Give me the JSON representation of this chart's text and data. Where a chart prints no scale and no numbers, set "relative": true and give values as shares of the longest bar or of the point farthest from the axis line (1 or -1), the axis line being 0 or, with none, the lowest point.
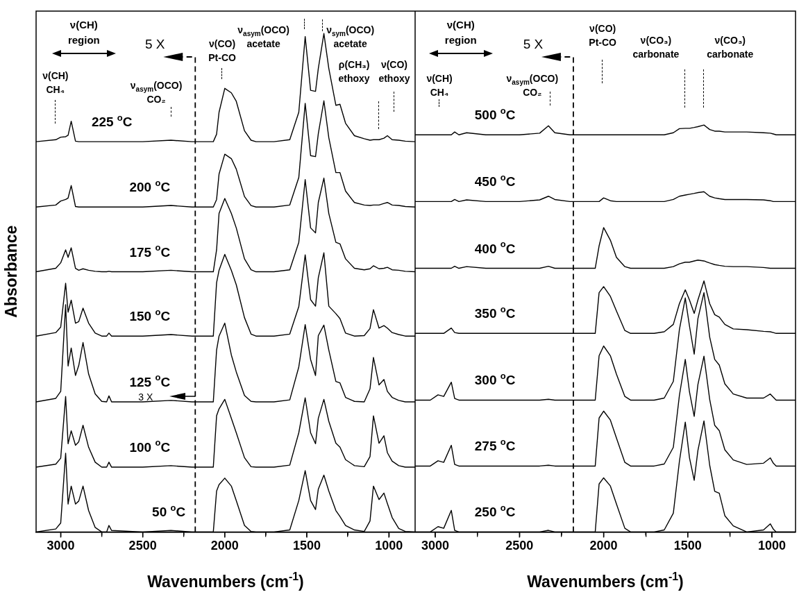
{
  "chart_data": [
    {
      "type": "line",
      "relative": true,
      "ylabel": "Absorbance",
      "xlabel": "Wavenumbers (cm$^{-1}$)",
      "xlim": [
        3150,
        840
      ],
      "xticks": [
        3000,
        {
          "value": 2750,
          "label": null
        },
        2500,
        {
          "value": 2250,
          "label": null
        },
        2000,
        {
          "value": 1750,
          "label": null
        },
        1500,
        {
          "value": 1250,
          "label": null
        },
        1000
      ],
      "tick_labels": "x",
      "grid": false,
      "legend": false,
      "marker": "none",
      "line_style": "solid",
      "x": [
        3150,
        3030,
        3000,
        2970,
        2955,
        2936,
        2910,
        2890,
        2864,
        2830,
        2790,
        2750,
        2720,
        2706,
        2690,
        2500,
        2328,
        2200,
        2070,
        2050,
        2035,
        2000,
        1960,
        1930,
        1880,
        1840,
        1810,
        1700,
        1604,
        1549,
        1510,
        1477,
        1447,
        1430,
        1396,
        1366,
        1323,
        1298,
        1264,
        1210,
        1150,
        1115,
        1094,
        1060,
        1030,
        1009,
        980,
        940,
        900,
        840
      ],
      "series": [
        {
          "name": "225 $^{o}$C",
          "color": "#000000",
          "values": [
            0.783,
            0.787,
            0.792,
            0.793,
            0.796,
            0.824,
            0.784,
            0.783,
            0.783,
            0.783,
            0.783,
            0.783,
            0.783,
            0.783,
            0.783,
            0.783,
            0.786,
            0.783,
            0.783,
            0.798,
            0.842,
            0.89,
            0.881,
            0.864,
            0.805,
            0.786,
            0.783,
            0.783,
            0.787,
            0.842,
            0.994,
            0.886,
            0.884,
            0.93,
            1,
            0.93,
            0.856,
            0.858,
            0.82,
            0.795,
            0.789,
            0.786,
            0.787,
            0.787,
            0.79,
            0.795,
            0.787,
            0.786,
            0.784,
            0.783
          ]
        },
        {
          "name": "200 $^{o}$C",
          "color": "#000000",
          "values": [
            0.652,
            0.656,
            0.664,
            0.667,
            0.67,
            0.695,
            0.653,
            0.652,
            0.652,
            0.652,
            0.652,
            0.652,
            0.652,
            0.652,
            0.652,
            0.652,
            0.655,
            0.652,
            0.652,
            0.667,
            0.718,
            0.758,
            0.749,
            0.728,
            0.673,
            0.655,
            0.652,
            0.652,
            0.656,
            0.711,
            0.86,
            0.755,
            0.753,
            0.799,
            0.865,
            0.791,
            0.721,
            0.721,
            0.684,
            0.661,
            0.656,
            0.655,
            0.656,
            0.656,
            0.659,
            0.661,
            0.656,
            0.655,
            0.653,
            0.652
          ]
        },
        {
          "name": "175 $^{o}$C",
          "color": "#000000",
          "values": [
            0.522,
            0.529,
            0.54,
            0.566,
            0.551,
            0.57,
            0.529,
            0.525,
            0.528,
            0.525,
            0.523,
            0.522,
            0.522,
            0.523,
            0.522,
            0.522,
            0.525,
            0.522,
            0.522,
            0.566,
            0.639,
            0.669,
            0.639,
            0.61,
            0.548,
            0.526,
            0.522,
            0.522,
            0.526,
            0.581,
            0.707,
            0.61,
            0.6,
            0.661,
            0.71,
            0.639,
            0.581,
            0.578,
            0.548,
            0.529,
            0.526,
            0.528,
            0.534,
            0.528,
            0.529,
            0.531,
            0.526,
            0.525,
            0.523,
            0.522
          ]
        },
        {
          "name": "150 $^{o}$C",
          "color": "#000000",
          "values": [
            0.393,
            0.4,
            0.411,
            0.499,
            0.441,
            0.465,
            0.419,
            0.422,
            0.449,
            0.419,
            0.399,
            0.393,
            0.393,
            0.399,
            0.393,
            0.393,
            0.396,
            0.393,
            0.393,
            0.5,
            0.525,
            0.557,
            0.525,
            0.496,
            0.43,
            0.397,
            0.393,
            0.393,
            0.397,
            0.452,
            0.556,
            0.466,
            0.453,
            0.51,
            0.56,
            0.453,
            0.438,
            0.428,
            0.399,
            0.393,
            0.394,
            0.408,
            0.446,
            0.409,
            0.414,
            0.409,
            0.4,
            0.396,
            0.393,
            0.393
          ]
        },
        {
          "name": "125 $^{o}$C",
          "color": "#000000",
          "values": [
            0.261,
            0.268,
            0.282,
            0.456,
            0.333,
            0.369,
            0.314,
            0.334,
            0.38,
            0.317,
            0.277,
            0.262,
            0.261,
            0.273,
            0.261,
            0.261,
            0.264,
            0.261,
            0.261,
            0.365,
            0.393,
            0.419,
            0.355,
            0.321,
            0.274,
            0.262,
            0.261,
            0.261,
            0.265,
            0.331,
            0.416,
            0.346,
            0.314,
            0.394,
            0.415,
            0.365,
            0.302,
            0.299,
            0.27,
            0.262,
            0.261,
            0.287,
            0.35,
            0.295,
            0.306,
            0.282,
            0.27,
            0.264,
            0.261,
            0.261
          ]
        },
        {
          "name": "100 $^{o}$C",
          "color": "#000000",
          "values": [
            0.13,
            0.136,
            0.148,
            0.272,
            0.177,
            0.203,
            0.174,
            0.181,
            0.214,
            0.17,
            0.14,
            0.13,
            0.13,
            0.14,
            0.13,
            0.13,
            0.133,
            0.13,
            0.13,
            0.233,
            0.247,
            0.266,
            0.228,
            0.199,
            0.149,
            0.131,
            0.13,
            0.13,
            0.134,
            0.199,
            0.269,
            0.199,
            0.177,
            0.228,
            0.266,
            0.222,
            0.178,
            0.17,
            0.145,
            0.133,
            0.131,
            0.151,
            0.233,
            0.178,
            0.193,
            0.159,
            0.142,
            0.133,
            0.13,
            0.13
          ]
        },
        {
          "name": "50 $^{o}$C",
          "color": "#000000",
          "values": [
            0,
            0.006,
            0.018,
            0.158,
            0.056,
            0.092,
            0.056,
            0.062,
            0.092,
            0.043,
            0.009,
            0,
            0,
            0.013,
            0.003,
            0,
            0.003,
            0,
            0,
            0.082,
            0.095,
            0.108,
            0.092,
            0.063,
            0.013,
            0.001,
            0,
            0,
            0.004,
            0.063,
            0.123,
            0.063,
            0.045,
            0.086,
            0.114,
            0.082,
            0.043,
            0.031,
            0.013,
            0.004,
            0.001,
            0.022,
            0.092,
            0.065,
            0.078,
            0.057,
            0.029,
            0.007,
            0.001,
            0
          ]
        }
      ],
      "ref_lines": [
        {
          "axis": "x",
          "value": 2180,
          "label": "5 X",
          "line_style": "dashed"
        }
      ],
      "annotations": [
        "ν(CH)\nregion",
        "ν(CH)\nCH₄",
        "ν$_{asym}$(OCO)\nCO₂",
        "ν(CO)\nPt-CO",
        "ν$_{asym}$(OCO)\nacetate",
        "ν$_{sym}$(OCO)\nacetate",
        "ρ(CH₃)\nethoxy",
        "ν(CO)\nethoxy",
        "3 X"
      ]
    },
    {
      "type": "line",
      "relative": true,
      "xlabel": "Wavenumbers (cm$^{-1}$)",
      "xlim": [
        3120,
        860
      ],
      "xticks": [
        3000,
        {
          "value": 2750,
          "label": null
        },
        2500,
        {
          "value": 2250,
          "label": null
        },
        2000,
        {
          "value": 1750,
          "label": null
        },
        1500,
        {
          "value": 1250,
          "label": null
        },
        1000
      ],
      "tick_labels": "x",
      "grid": false,
      "legend": false,
      "marker": "none",
      "line_style": "solid",
      "x": [
        3120,
        3030,
        2984,
        2950,
        2905,
        2885,
        2860,
        2814,
        2700,
        2500,
        2380,
        2328,
        2290,
        2200,
        2050,
        2027,
        2000,
        1960,
        1924,
        1874,
        1840,
        1700,
        1640,
        1586,
        1550,
        1515,
        1490,
        1462,
        1440,
        1404,
        1370,
        1340,
        1313,
        1280,
        1230,
        1150,
        1050,
        1010,
        992,
        975,
        900,
        860
      ],
      "series": [
        {
          "name": "500 $^{o}$C",
          "color": "#000000",
          "values": [
            0.976,
            0.976,
            0.976,
            0.976,
            0.976,
            0.983,
            0.976,
            0.981,
            0.976,
            0.976,
            0.98,
            0.998,
            0.981,
            0.976,
            0.976,
            0.976,
            0.976,
            0.976,
            0.976,
            0.976,
            0.976,
            0.976,
            0.976,
            0.981,
            0.991,
            0.992,
            0.992,
            0.994,
            0.996,
            1,
            0.989,
            0.985,
            0.985,
            0.983,
            0.983,
            0.983,
            0.981,
            0.98,
            0.978,
            0.976,
            0.976,
            0.976
          ]
        },
        {
          "name": "450 $^{o}$C",
          "color": "#000000",
          "values": [
            0.812,
            0.812,
            0.812,
            0.812,
            0.812,
            0.817,
            0.812,
            0.816,
            0.812,
            0.812,
            0.816,
            0.825,
            0.817,
            0.812,
            0.812,
            0.812,
            0.821,
            0.814,
            0.812,
            0.812,
            0.812,
            0.812,
            0.812,
            0.817,
            0.825,
            0.828,
            0.83,
            0.832,
            0.834,
            0.836,
            0.825,
            0.821,
            0.819,
            0.817,
            0.817,
            0.817,
            0.816,
            0.814,
            0.812,
            0.812,
            0.812,
            0.812
          ]
        },
        {
          "name": "400 $^{o}$C",
          "color": "#000000",
          "values": [
            0.648,
            0.648,
            0.648,
            0.648,
            0.648,
            0.653,
            0.648,
            0.652,
            0.648,
            0.648,
            0.648,
            0.653,
            0.648,
            0.648,
            0.648,
            0.703,
            0.748,
            0.717,
            0.675,
            0.652,
            0.648,
            0.648,
            0.648,
            0.652,
            0.659,
            0.663,
            0.663,
            0.666,
            0.668,
            0.666,
            0.661,
            0.657,
            0.655,
            0.653,
            0.652,
            0.652,
            0.65,
            0.648,
            0.648,
            0.648,
            0.648,
            0.648
          ]
        },
        {
          "name": "350 $^{o}$C",
          "color": "#000000",
          "values": [
            0.488,
            0.488,
            0.488,
            0.488,
            0.501,
            0.49,
            0.488,
            0.488,
            0.488,
            0.488,
            0.488,
            0.488,
            0.488,
            0.488,
            0.488,
            0.588,
            0.603,
            0.579,
            0.543,
            0.495,
            0.488,
            0.488,
            0.492,
            0.51,
            0.561,
            0.595,
            0.57,
            0.537,
            0.57,
            0.617,
            0.561,
            0.534,
            0.528,
            0.51,
            0.499,
            0.497,
            0.493,
            0.492,
            0.49,
            0.488,
            0.488,
            0.488
          ]
        },
        {
          "name": "300 $^{o}$C",
          "color": "#000000",
          "values": [
            0.324,
            0.324,
            0.337,
            0.333,
            0.368,
            0.328,
            0.324,
            0.324,
            0.324,
            0.324,
            0.324,
            0.326,
            0.324,
            0.324,
            0.324,
            0.433,
            0.457,
            0.433,
            0.388,
            0.333,
            0.324,
            0.324,
            0.329,
            0.37,
            0.497,
            0.575,
            0.506,
            0.437,
            0.524,
            0.588,
            0.479,
            0.424,
            0.41,
            0.364,
            0.339,
            0.329,
            0.329,
            0.339,
            0.331,
            0.324,
            0.324,
            0.324
          ]
        },
        {
          "name": "275 $^{o}$C",
          "color": "#000000",
          "values": [
            0.162,
            0.162,
            0.175,
            0.171,
            0.213,
            0.166,
            0.162,
            0.162,
            0.162,
            0.162,
            0.162,
            0.164,
            0.162,
            0.162,
            0.162,
            0.28,
            0.297,
            0.275,
            0.231,
            0.171,
            0.162,
            0.162,
            0.167,
            0.208,
            0.335,
            0.424,
            0.344,
            0.284,
            0.362,
            0.432,
            0.326,
            0.262,
            0.249,
            0.202,
            0.177,
            0.166,
            0.169,
            0.182,
            0.169,
            0.162,
            0.162,
            0.162
          ]
        },
        {
          "name": "250 $^{o}$C",
          "color": "#000000",
          "values": [
            0,
            0,
            0.013,
            0.009,
            0.053,
            0.004,
            0,
            0,
            0,
            0,
            0,
            0.004,
            0,
            0,
            0,
            0.118,
            0.133,
            0.113,
            0.069,
            0.009,
            0,
            0,
            0.005,
            0.046,
            0.173,
            0.27,
            0.182,
            0.127,
            0.2,
            0.273,
            0.164,
            0.1,
            0.095,
            0.04,
            0.015,
            0,
            0.005,
            0.02,
            0.007,
            0,
            0,
            0
          ]
        }
      ],
      "ref_lines": [
        {
          "axis": "x",
          "value": 2180,
          "label": "5 X",
          "line_style": "dashed"
        }
      ],
      "annotations": [
        "ν(CH)\nregion",
        "ν(CH)\nCH₄",
        "ν$_{asym}$(OCO)\nCO₂",
        "ν(CO)\nPt-CO",
        "ν(CO₃)\ncarbonate",
        "ν(CO₃)\ncarbonate"
      ]
    }
  ]
}
